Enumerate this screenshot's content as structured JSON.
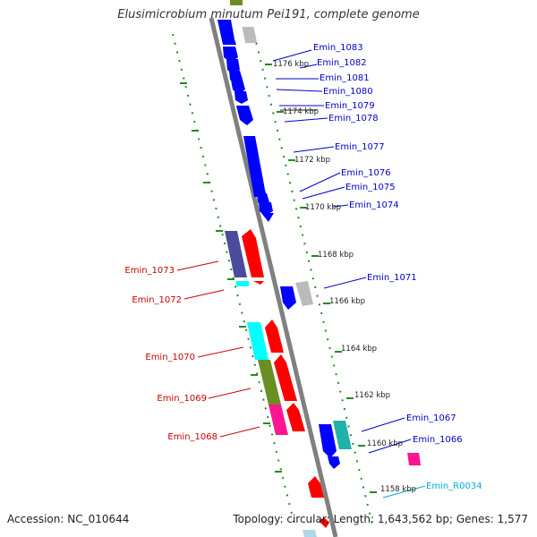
{
  "title": "Elusimicrobium minutum Pei191, complete genome",
  "accession": "Accession: NC_010644",
  "topology": "Topology: circular; Length: 1,643,562 bp; Genes: 1,577",
  "colors": {
    "forward_label": "#0000cc",
    "reverse_label": "#cc0000",
    "rna_label": "#00aadd",
    "axis_tick": "#228b22",
    "backbone": "#808080"
  },
  "kbp_labels": [
    "1176 kbp",
    "1174 kbp",
    "1172 kbp",
    "1170 kbp",
    "1168 kbp",
    "1166 kbp",
    "1164 kbp",
    "1162 kbp",
    "1160 kbp",
    "1158 kbp"
  ],
  "forward_genes": [
    "Emin_1083",
    "Emin_1082",
    "Emin_1081",
    "Emin_1080",
    "Emin_1079",
    "Emin_1078",
    "Emin_1077",
    "Emin_1076",
    "Emin_1075",
    "Emin_1074",
    "Emin_1071",
    "Emin_1067",
    "Emin_1066"
  ],
  "reverse_genes": [
    "Emin_1073",
    "Emin_1072",
    "Emin_1070",
    "Emin_1069",
    "Emin_1068"
  ],
  "rna_genes": [
    "Emin_R0034"
  ]
}
